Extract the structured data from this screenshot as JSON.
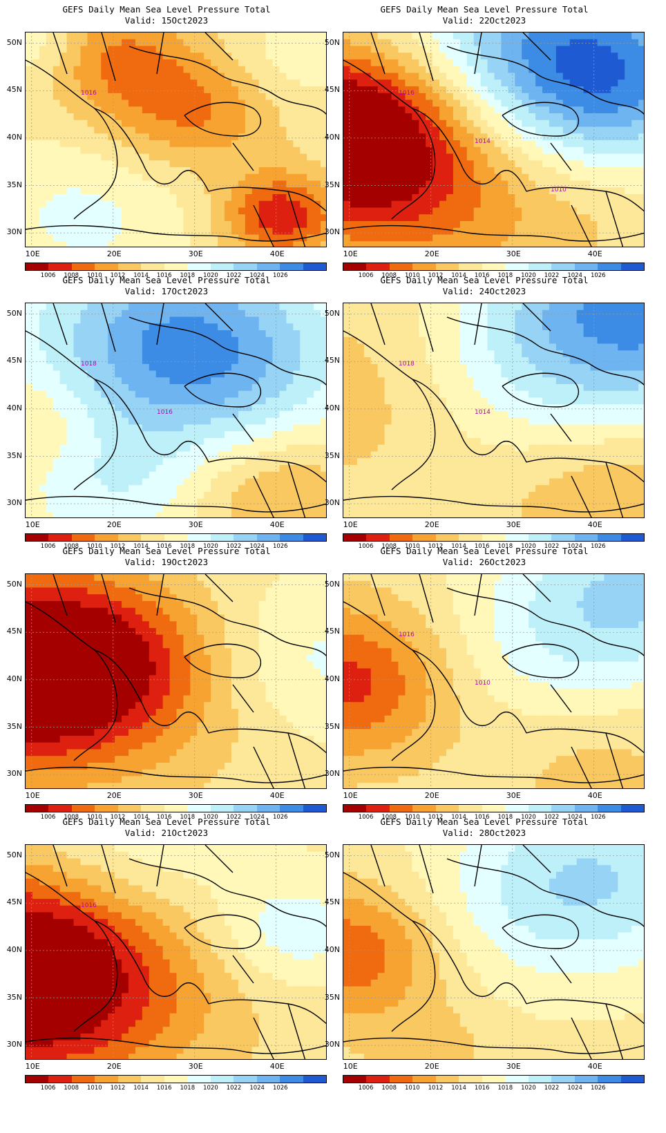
{
  "colorbar": {
    "labels": [
      "1006",
      "1008",
      "1010",
      "1012",
      "1014",
      "1016",
      "1018",
      "1020",
      "1022",
      "1024",
      "1026"
    ],
    "colors": [
      "#a50000",
      "#dd2010",
      "#f06a10",
      "#f7a332",
      "#fac860",
      "#fde89a",
      "#fff8b8",
      "#e3ffff",
      "#bef0fa",
      "#96d3f5",
      "#6eb4f0",
      "#3c8ce6",
      "#1e5ad2"
    ]
  },
  "axes": {
    "lat_labels": [
      "50N",
      "45N",
      "40N",
      "35N",
      "30N"
    ],
    "lon_labels": [
      "10E",
      "20E",
      "30E",
      "40E"
    ]
  },
  "panels": [
    {
      "title": "GEFS Daily Mean Sea Level Pressure Total",
      "valid": "Valid: 15Oct2023",
      "contour_labels": [
        "1016"
      ],
      "field": {
        "base": 1015.5,
        "bumps": [
          [
            0.25,
            0.1,
            -6,
            0.18
          ],
          [
            0.55,
            0.35,
            -6,
            0.2
          ],
          [
            0.85,
            0.85,
            -9,
            0.14
          ],
          [
            0.2,
            0.85,
            3,
            0.25
          ],
          [
            0.05,
            0.05,
            4,
            0.15
          ],
          [
            0.85,
            0.15,
            2,
            0.15
          ]
        ]
      }
    },
    {
      "title": "GEFS Daily Mean Sea Level Pressure Total",
      "valid": "Valid: 22Oct2023",
      "contour_labels": [
        "1016",
        "1014",
        "1010"
      ],
      "field": {
        "base": 1015.5,
        "bumps": [
          [
            0.02,
            0.45,
            -14,
            0.28
          ],
          [
            0.25,
            0.8,
            -4,
            0.3
          ],
          [
            0.7,
            0.05,
            10,
            0.35
          ],
          [
            0.9,
            0.3,
            6,
            0.25
          ],
          [
            0.75,
            0.75,
            -2,
            0.3
          ]
        ]
      }
    },
    {
      "title": "GEFS Daily Mean Sea Level Pressure Total",
      "valid": "Valid: 17Oct2023",
      "contour_labels": [
        "1018",
        "1016"
      ],
      "field": {
        "base": 1016.5,
        "bumps": [
          [
            0.6,
            0.25,
            9,
            0.3
          ],
          [
            0.3,
            0.1,
            3,
            0.3
          ],
          [
            0.3,
            0.85,
            3,
            0.2
          ],
          [
            0.85,
            0.9,
            -5,
            0.22
          ],
          [
            0.02,
            0.55,
            -2,
            0.15
          ]
        ]
      }
    },
    {
      "title": "GEFS Daily Mean Sea Level Pressure Total",
      "valid": "Valid: 24Oct2023",
      "contour_labels": [
        "1018",
        "1014"
      ],
      "field": {
        "base": 1014.8,
        "bumps": [
          [
            1.0,
            0.0,
            12,
            0.35
          ],
          [
            0.6,
            0.35,
            3,
            0.3
          ],
          [
            0.1,
            0.4,
            -2,
            0.3
          ],
          [
            0.9,
            0.85,
            -3,
            0.25
          ]
        ]
      }
    },
    {
      "title": "GEFS Daily Mean Sea Level Pressure Total",
      "valid": "Valid: 19Oct2023",
      "contour_labels": [],
      "field": {
        "base": 1015.5,
        "bumps": [
          [
            0.0,
            0.45,
            -14,
            0.32
          ],
          [
            0.3,
            0.4,
            -4,
            0.25
          ],
          [
            0.95,
            0.4,
            3,
            0.25
          ],
          [
            0.55,
            0.8,
            -1,
            0.3
          ]
        ]
      }
    },
    {
      "title": "GEFS Daily Mean Sea Level Pressure Total",
      "valid": "Valid: 26Oct2023",
      "contour_labels": [
        "1016",
        "1010"
      ],
      "field": {
        "base": 1015.2,
        "bumps": [
          [
            0.0,
            0.5,
            -8,
            0.25
          ],
          [
            0.95,
            0.1,
            7,
            0.3
          ],
          [
            0.6,
            0.4,
            2,
            0.25
          ],
          [
            0.85,
            0.9,
            -2,
            0.25
          ]
        ]
      }
    },
    {
      "title": "GEFS Daily Mean Sea Level Pressure Total",
      "valid": "Valid: 21Oct2023",
      "contour_labels": [
        "1016"
      ],
      "field": {
        "base": 1015.5,
        "bumps": [
          [
            0.0,
            0.6,
            -15,
            0.34
          ],
          [
            0.35,
            0.05,
            3,
            0.25
          ],
          [
            0.88,
            0.4,
            4,
            0.18
          ],
          [
            0.6,
            0.85,
            -1,
            0.3
          ]
        ]
      }
    },
    {
      "title": "GEFS Daily Mean Sea Level Pressure Total",
      "valid": "Valid: 28Oct2023",
      "contour_labels": [],
      "field": {
        "base": 1015.2,
        "bumps": [
          [
            0.02,
            0.5,
            -7,
            0.22
          ],
          [
            0.85,
            0.15,
            6,
            0.3
          ],
          [
            0.55,
            0.3,
            2,
            0.3
          ],
          [
            0.3,
            0.95,
            -2,
            0.15
          ]
        ]
      }
    }
  ]
}
